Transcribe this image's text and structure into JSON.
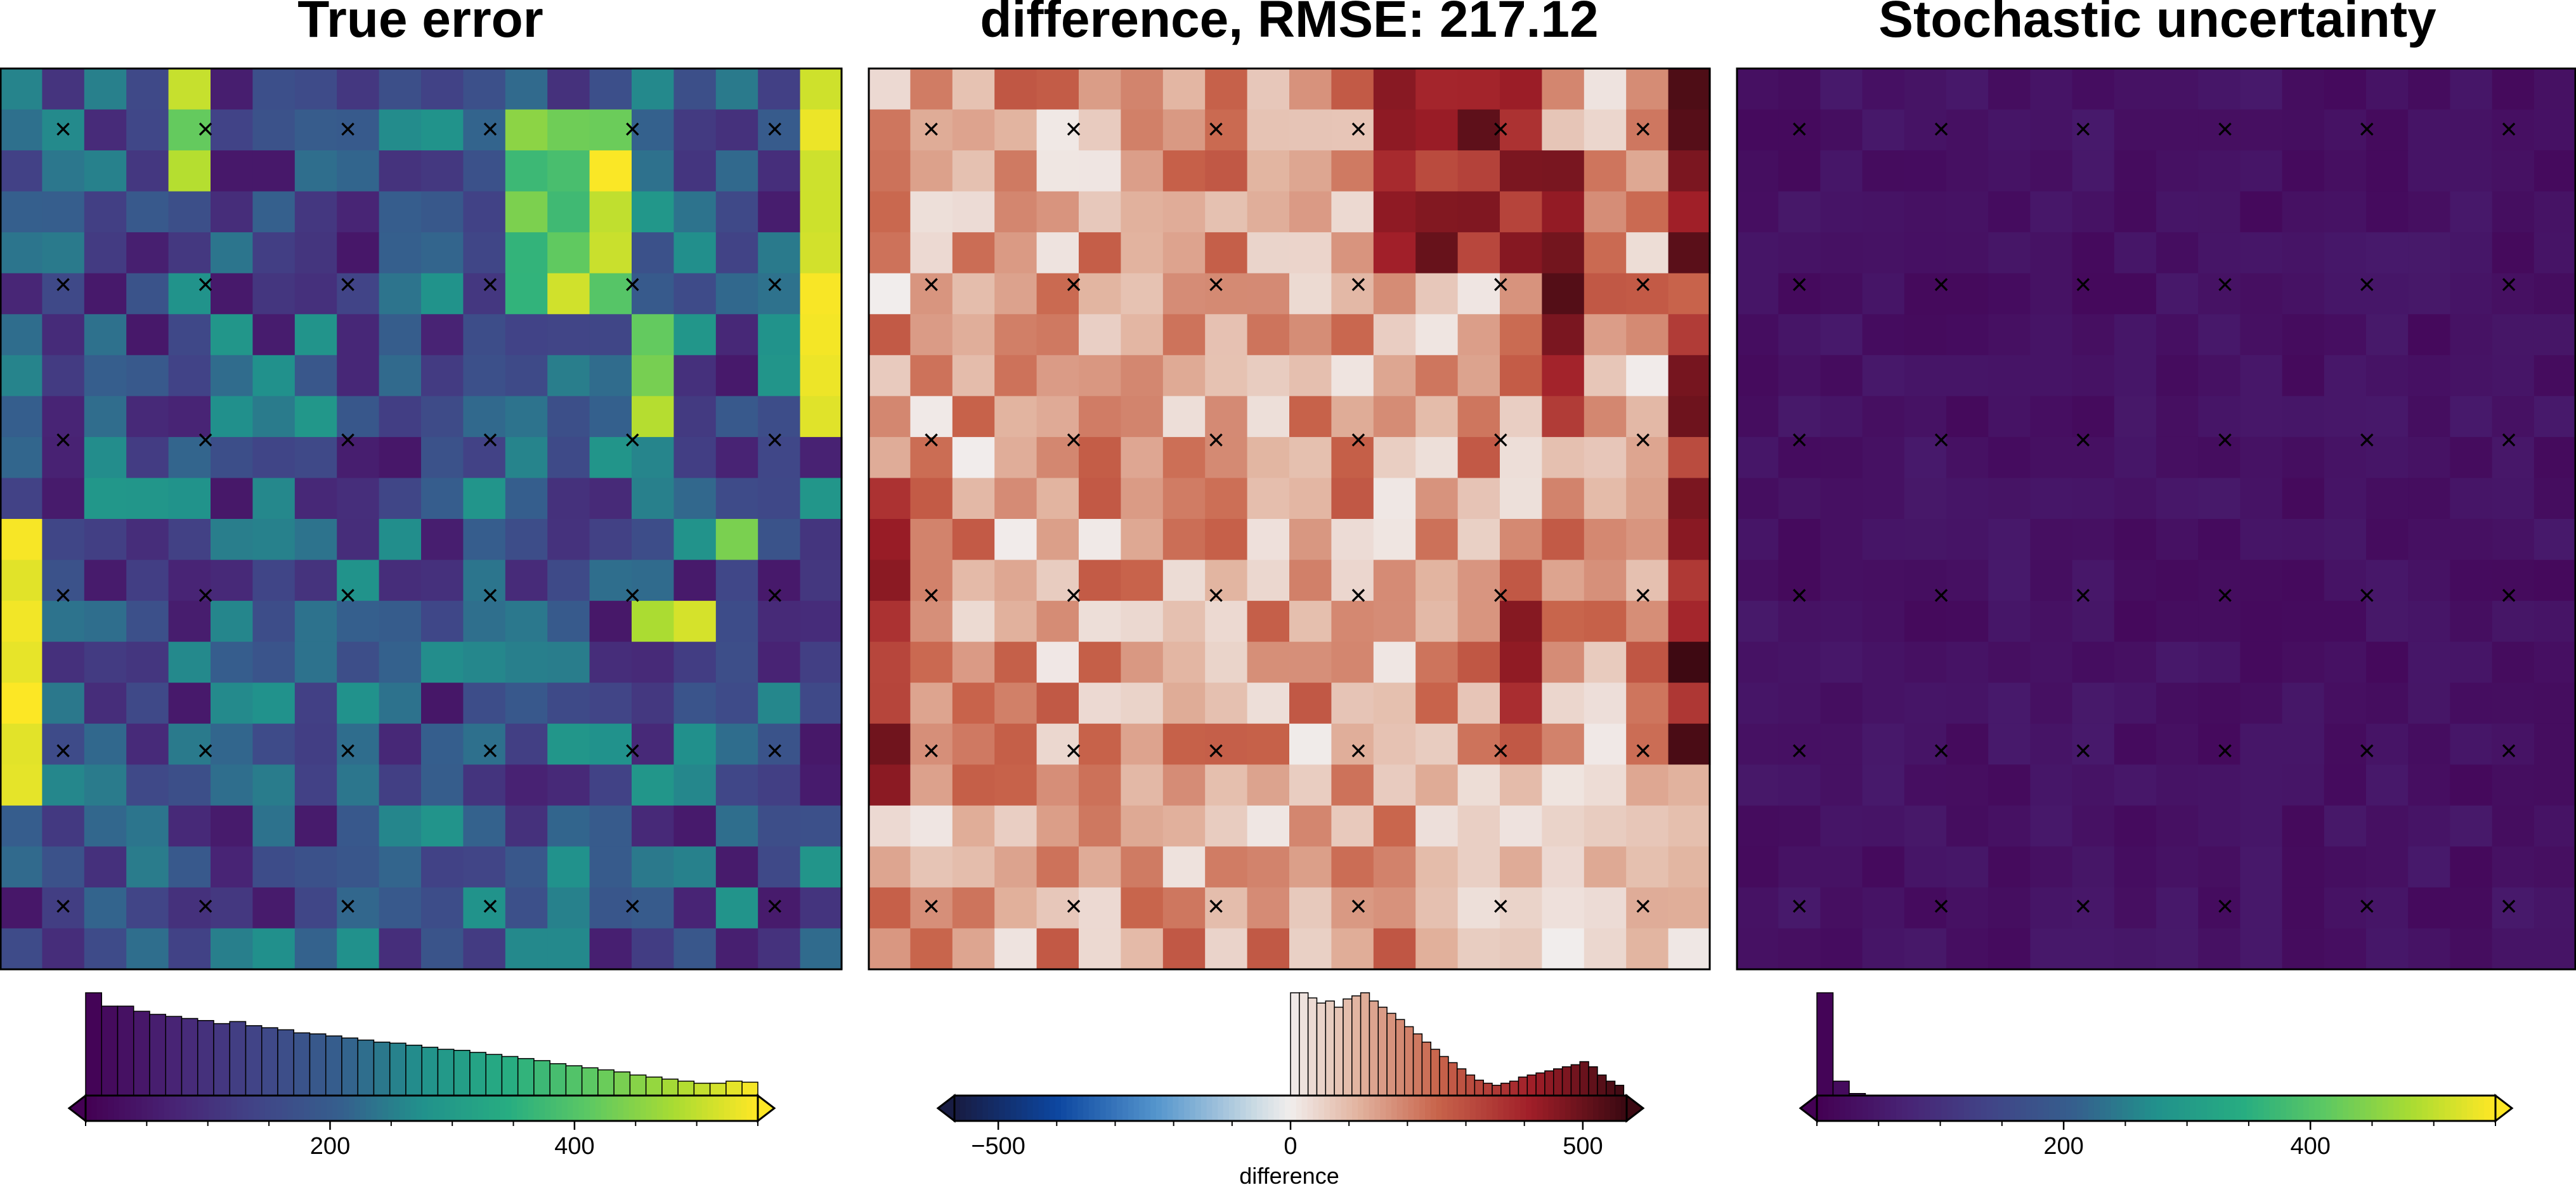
{
  "chart_data": [
    {
      "type": "heatmap",
      "title": "True error",
      "colormap": "viridis",
      "grid": {
        "rows": 22,
        "cols": 20
      },
      "value_range": [
        0,
        550
      ],
      "station_markers": {
        "symbol": "×",
        "rows": 6,
        "cols": 6
      },
      "colorbar": {
        "ticks": [
          200,
          400
        ],
        "tick_labels": [
          "200",
          "400"
        ],
        "range": [
          0,
          550
        ],
        "extend": "both",
        "label": ""
      },
      "histogram": {
        "bin_start": 0,
        "bin_width": 13.1,
        "counts": [
          100,
          87,
          87,
          82,
          79,
          77,
          75,
          73,
          70,
          72,
          68,
          66,
          64,
          61,
          60,
          58,
          56,
          54,
          52,
          51,
          49,
          47,
          45,
          44,
          42,
          40,
          38,
          36,
          34,
          31,
          29,
          27,
          25,
          23,
          20,
          18,
          16,
          14,
          12,
          12,
          14,
          13,
          14,
          15,
          16,
          18,
          17,
          14,
          11,
          10,
          9,
          8
        ]
      }
    },
    {
      "type": "heatmap",
      "title": "difference, RMSE: 217.12",
      "colormap": "balance",
      "grid": {
        "rows": 22,
        "cols": 20
      },
      "value_range": [
        -575,
        575
      ],
      "station_markers": {
        "symbol": "×",
        "rows": 6,
        "cols": 6
      },
      "colorbar": {
        "ticks": [
          -500,
          0,
          500
        ],
        "tick_labels": [
          "−500",
          "0",
          "500"
        ],
        "range": [
          -575,
          575
        ],
        "extend": "both",
        "label": "difference"
      },
      "histogram": {
        "bin_start": 0,
        "bin_width": 15,
        "counts": [
          100,
          100,
          95,
          90,
          92,
          86,
          94,
          97,
          100,
          92,
          86,
          80,
          74,
          67,
          60,
          52,
          45,
          38,
          32,
          26,
          20,
          15,
          12,
          10,
          12,
          14,
          18,
          20,
          22,
          24,
          26,
          28,
          30,
          33,
          28,
          20,
          14,
          10
        ]
      }
    },
    {
      "type": "heatmap",
      "title": "Stochastic uncertainty",
      "colormap": "viridis",
      "grid": {
        "rows": 22,
        "cols": 20
      },
      "value_range": [
        0,
        550
      ],
      "station_markers": {
        "symbol": "×",
        "rows": 6,
        "cols": 6
      },
      "colorbar": {
        "ticks": [
          200,
          400
        ],
        "tick_labels": [
          "200",
          "400"
        ],
        "range": [
          0,
          550
        ],
        "extend": "both",
        "label": ""
      },
      "histogram": {
        "bin_start": 0,
        "bin_width": 13.1,
        "counts": [
          100,
          14,
          2,
          0,
          0,
          0,
          0,
          0,
          0,
          0,
          0,
          0,
          0,
          0,
          0,
          0,
          0,
          0,
          0,
          0,
          0,
          0,
          0,
          0,
          0,
          0,
          0,
          0,
          0,
          0,
          0,
          0,
          0,
          0,
          0,
          0,
          0,
          0,
          0,
          0,
          0,
          0
        ]
      }
    }
  ]
}
